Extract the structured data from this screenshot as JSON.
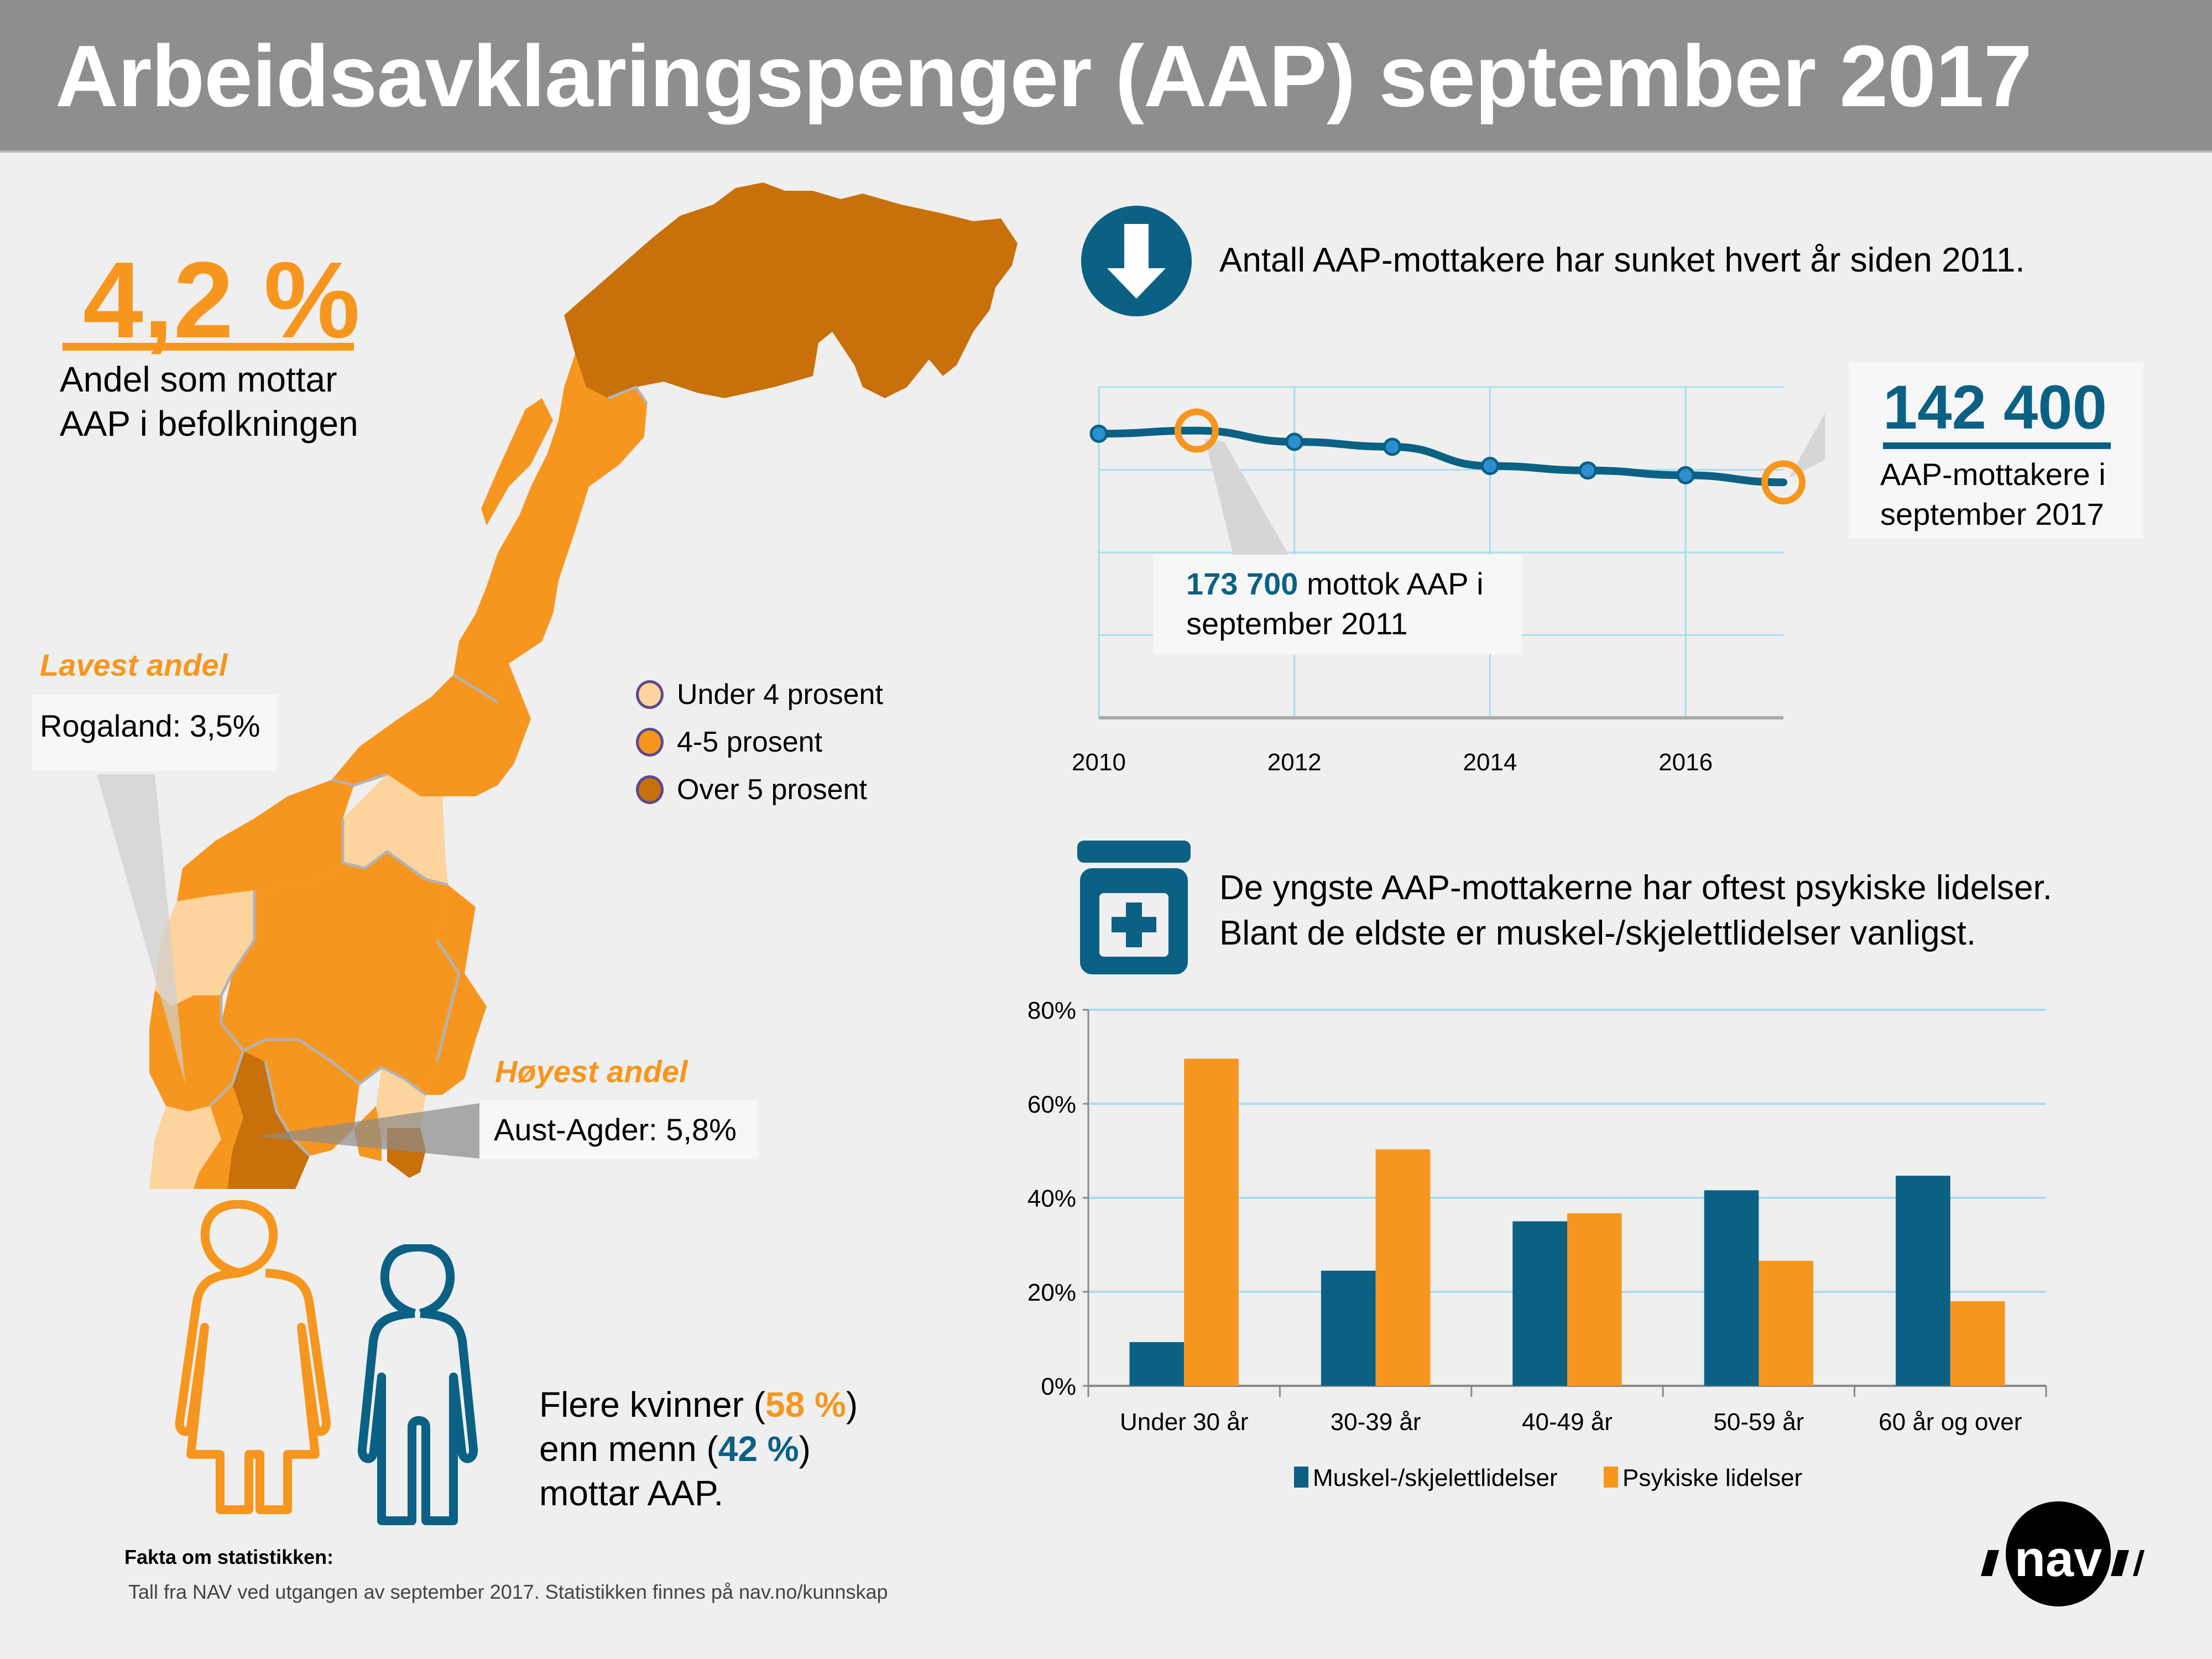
{
  "header": {
    "title": "Arbeidsavklaringspenger (AAP) september 2017"
  },
  "share": {
    "value": "4,2 %",
    "label_line1": "Andel som mottar",
    "label_line2": "AAP i befolkningen"
  },
  "map": {
    "lowest": {
      "title": "Lavest andel",
      "text": "Rogaland: 3,5%"
    },
    "highest": {
      "title": "Høyest andel",
      "text": "Aust-Agder: 5,8%"
    },
    "legend": [
      {
        "label": "Under 4 prosent",
        "color": "#fdd39e"
      },
      {
        "label": "4-5 prosent",
        "color": "#f7961e"
      },
      {
        "label": "Over 5 prosent",
        "color": "#c8700a"
      }
    ]
  },
  "gender": {
    "line1_pre": "Flere kvinner (",
    "women_pct": "58 %",
    "line1_post": ")",
    "line2_pre": "enn menn (",
    "men_pct": "42 %",
    "line2_post": ")",
    "line3": "mottar AAP.",
    "women_color": "#f7961e",
    "men_color": "#0b6184"
  },
  "facts": {
    "title": "Fakta om statistikken:",
    "text": "Tall fra NAV ved utgangen av september 2017. Statistikken finnes på nav.no/kunnskap"
  },
  "trend": {
    "headline": "Antall AAP-mottakere har sunket hvert år siden 2011.",
    "callout_2011_num": "173 700",
    "callout_2011_rest": " mottok AAP i",
    "callout_2011_line2": "september 2011",
    "callout_2017_num": "142 400",
    "callout_2017_line1": "AAP-mottakere i",
    "callout_2017_line2": "september 2017"
  },
  "disease": {
    "line1": "De yngste AAP-mottakerne har oftest psykiske lidelser.",
    "line2": "Blant de eldste er muskel-/skjelettlidelser vanligst."
  },
  "logo": {
    "text": "nav"
  },
  "colors": {
    "orange": "#f7961e",
    "blue": "#0b6184",
    "light_orange": "#fdd39e",
    "dark_orange": "#c8700a",
    "grid": "#a9dcf0"
  },
  "chart_data": [
    {
      "type": "line",
      "title": "Antall AAP-mottakere",
      "x": [
        2010,
        2011,
        2012,
        2013,
        2014,
        2015,
        2016,
        2017
      ],
      "series": [
        {
          "name": "AAP-mottakere",
          "values": [
            171800,
            173700,
            166900,
            163900,
            152300,
            149600,
            146700,
            142400
          ]
        }
      ],
      "highlighted": [
        {
          "x": 2011,
          "value": 173700
        },
        {
          "x": 2017,
          "value": 142400
        }
      ],
      "xticks": [
        "2010",
        "2012",
        "2014",
        "2016"
      ],
      "xlim": [
        2010,
        2017
      ],
      "ylim": [
        0,
        200000
      ],
      "y_gridlines": [
        0,
        50000,
        100000,
        150000,
        200000
      ],
      "ytick_labels_shown": false,
      "grid": true,
      "xlabel": "",
      "ylabel": ""
    },
    {
      "type": "bar",
      "categories": [
        "Under 30 år",
        "30-39 år",
        "40-49 år",
        "50-59 år",
        "60 år og over"
      ],
      "series": [
        {
          "name": "Muskel-/skjelettlidelser",
          "color": "#0b6184",
          "values": [
            9.3,
            24.5,
            35.0,
            41.6,
            44.7
          ]
        },
        {
          "name": "Psykiske lidelser",
          "color": "#f7961e",
          "values": [
            69.6,
            50.3,
            36.7,
            26.6,
            18.0
          ]
        }
      ],
      "yticks": [
        "0%",
        "20%",
        "40%",
        "60%",
        "80%"
      ],
      "ylim": [
        0,
        80
      ],
      "grid": true,
      "legend": "bottom",
      "title": "",
      "xlabel": "",
      "ylabel": ""
    }
  ]
}
